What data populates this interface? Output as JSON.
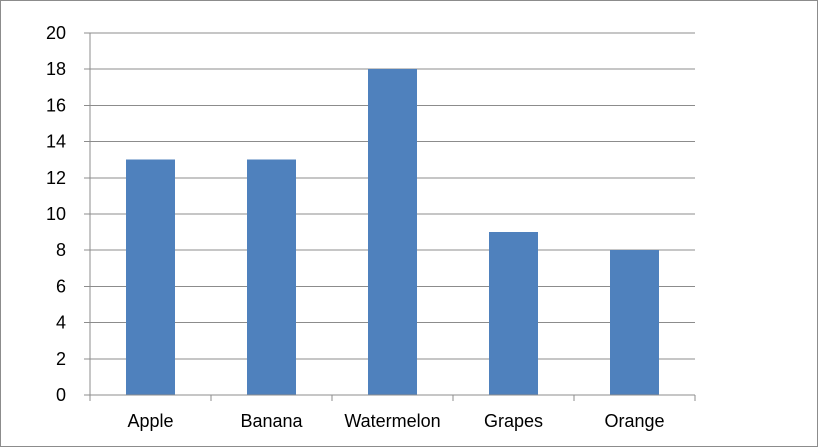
{
  "chart_data": {
    "type": "bar",
    "categories": [
      "Apple",
      "Banana",
      "Watermelon",
      "Grapes",
      "Orange"
    ],
    "values": [
      13,
      13,
      18,
      9,
      8
    ],
    "title": "",
    "xlabel": "",
    "ylabel": "",
    "ylim": [
      0,
      20
    ],
    "yticks": [
      "0",
      "2",
      "4",
      "6",
      "8",
      "10",
      "12",
      "14",
      "16",
      "18",
      "20"
    ],
    "grid": "horizontal",
    "legend": "none",
    "bar_color": "#4F81BD",
    "grid_color": "#8C8C8C",
    "axis_color": "#8C8C8C"
  }
}
